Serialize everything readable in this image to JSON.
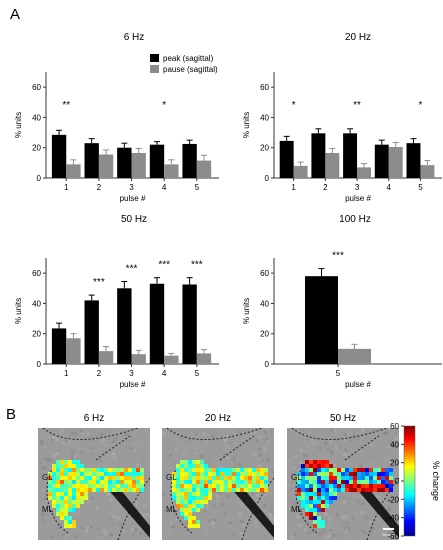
{
  "panel_labels": {
    "a": "A",
    "b": "B"
  },
  "chart_data": [
    {
      "type": "bar",
      "title": "6 Hz",
      "xlabel": "pulse #",
      "ylabel": "% units",
      "ylim": [
        0,
        70
      ],
      "yticks": [
        "0",
        "20",
        "40",
        "60"
      ],
      "categories": [
        "1",
        "2",
        "3",
        "4",
        "5"
      ],
      "legend": {
        "placement": "top-right"
      },
      "series": [
        {
          "name": "peak (sagittal)",
          "color": "#000000",
          "values": [
            28.5,
            23,
            20,
            22,
            22.5
          ],
          "errors": [
            3,
            3,
            3,
            2,
            2.5
          ]
        },
        {
          "name": "pause (sagittal)",
          "color": "#8c8c8c",
          "values": [
            9,
            15.5,
            16.5,
            9,
            11.5
          ],
          "errors": [
            3,
            3,
            3,
            3,
            3.5
          ]
        }
      ],
      "annotations": [
        {
          "category": "1",
          "text": "**"
        },
        {
          "category": "4",
          "text": "*"
        }
      ]
    },
    {
      "type": "bar",
      "title": "20 Hz",
      "xlabel": "pulse #",
      "ylabel": "% units",
      "ylim": [
        0,
        70
      ],
      "yticks": [
        "0",
        "20",
        "40",
        "60"
      ],
      "categories": [
        "1",
        "2",
        "3",
        "4",
        "5"
      ],
      "series": [
        {
          "name": "peak (sagittal)",
          "color": "#000000",
          "values": [
            24.5,
            29.5,
            29.5,
            22,
            23
          ],
          "errors": [
            3,
            3,
            3,
            3,
            3
          ]
        },
        {
          "name": "pause (sagittal)",
          "color": "#8c8c8c",
          "values": [
            8,
            16.5,
            7,
            20.5,
            8.5
          ],
          "errors": [
            2.5,
            3,
            2.5,
            3,
            3
          ]
        }
      ],
      "annotations": [
        {
          "category": "1",
          "text": "*"
        },
        {
          "category": "3",
          "text": "**"
        },
        {
          "category": "5",
          "text": "*"
        }
      ]
    },
    {
      "type": "bar",
      "title": "50 Hz",
      "xlabel": "pulse #",
      "ylabel": "% units",
      "ylim": [
        0,
        70
      ],
      "yticks": [
        "0",
        "20",
        "40",
        "60"
      ],
      "categories": [
        "1",
        "2",
        "3",
        "4",
        "5"
      ],
      "series": [
        {
          "name": "peak (sagittal)",
          "color": "#000000",
          "values": [
            23.5,
            42,
            50,
            53,
            52.5
          ],
          "errors": [
            3.5,
            3.5,
            4.5,
            4,
            4.5
          ]
        },
        {
          "name": "pause (sagittal)",
          "color": "#8c8c8c",
          "values": [
            17,
            8.5,
            6.5,
            5.5,
            7
          ],
          "errors": [
            3,
            3,
            2.5,
            1.5,
            2.5
          ]
        }
      ],
      "annotations": [
        {
          "category": "2",
          "text": "***"
        },
        {
          "category": "3",
          "text": "***"
        },
        {
          "category": "4",
          "text": "***"
        },
        {
          "category": "5",
          "text": "***"
        }
      ]
    },
    {
      "type": "bar",
      "title": "100 Hz",
      "xlabel": "pulse #",
      "ylabel": "% units",
      "ylim": [
        0,
        70
      ],
      "yticks": [
        "0",
        "20",
        "40",
        "60"
      ],
      "categories": [
        "5"
      ],
      "series": [
        {
          "name": "peak (sagittal)",
          "color": "#000000",
          "values": [
            58
          ],
          "errors": [
            5
          ]
        },
        {
          "name": "pause (sagittal)",
          "color": "#8c8c8c",
          "values": [
            10
          ],
          "errors": [
            3
          ]
        }
      ],
      "annotations": [
        {
          "category": "5",
          "text": "***"
        }
      ]
    }
  ],
  "heatmaps": [
    {
      "title": "6 Hz",
      "intensity": "low"
    },
    {
      "title": "20 Hz",
      "intensity": "low"
    },
    {
      "title": "50 Hz",
      "intensity": "high"
    }
  ],
  "region_labels": {
    "gl": "GL",
    "ml": "ML"
  },
  "scale_bar_label": "50 µm",
  "colorbar": {
    "label": "% change",
    "range": [
      -60,
      60
    ],
    "ticks": [
      "60",
      "40",
      "20",
      "0",
      "-20",
      "-40",
      "-60"
    ],
    "colormap": "jet"
  }
}
